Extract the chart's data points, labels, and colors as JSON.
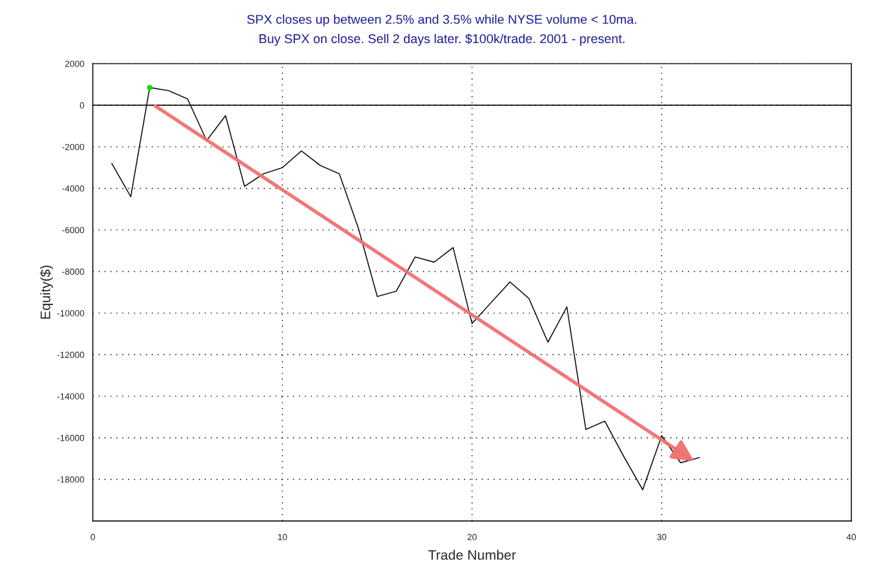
{
  "chart_data": {
    "type": "line",
    "title": "SPX closes up between 2.5% and 3.5% while NYSE volume < 10ma.",
    "subtitle": "Buy SPX on close. Sell 2 days later. $100k/trade. 2001 - present.",
    "xlabel": "Trade Number",
    "ylabel": "Equity($)",
    "series": [
      {
        "color": "#000000",
        "x": [
          1,
          2,
          3,
          4,
          5,
          6,
          7,
          8,
          9,
          10,
          11,
          12,
          13,
          14,
          15,
          16,
          17,
          18,
          19,
          20,
          21,
          22,
          23,
          24,
          25,
          26,
          27,
          28,
          29,
          30,
          31,
          32
        ],
        "values": [
          -2800,
          -4400,
          850,
          700,
          300,
          -1700,
          -500,
          -3900,
          -3300,
          -3000,
          -2200,
          -2900,
          -3300,
          -5900,
          -9200,
          -8950,
          -7300,
          -7550,
          -6850,
          -10500,
          -9500,
          -8500,
          -9300,
          -11400,
          -9700,
          -15600,
          -15200,
          -16900,
          -18500,
          -15900,
          -17200,
          -16950
        ]
      },
      {
        "type": "scatter",
        "color": "#00e000",
        "x": [
          3
        ],
        "values": [
          850
        ]
      }
    ],
    "xlim": [
      0,
      40
    ],
    "xticks": [
      0,
      10,
      20,
      30,
      40
    ],
    "ylim": [
      -20000,
      2000
    ],
    "yticks": [
      2000,
      0,
      -2000,
      -4000,
      -6000,
      -8000,
      -10000,
      -12000,
      -14000,
      -16000,
      -18000
    ],
    "grid": true,
    "ref_lines": [
      {
        "axis": "y",
        "value": 0,
        "color": "#000000",
        "line_style": "solid"
      }
    ]
  }
}
